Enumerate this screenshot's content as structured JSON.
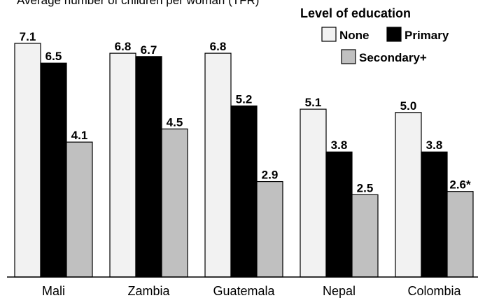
{
  "chart_data": {
    "type": "bar",
    "title": "Average number of children per woman (TFR)",
    "legend_title": "Level of education",
    "legend_position": "top-right",
    "categories": [
      "Mali",
      "Zambia",
      "Guatemala",
      "Nepal",
      "Colombia"
    ],
    "series": [
      {
        "name": "None",
        "color": "#f2f2f2",
        "values": [
          7.1,
          6.8,
          6.8,
          5.1,
          5.0
        ],
        "labels": [
          "7.1",
          "6.8",
          "6.8",
          "5.1",
          "5.0"
        ]
      },
      {
        "name": "Primary",
        "color": "#000000",
        "values": [
          6.5,
          6.7,
          5.2,
          3.8,
          3.8
        ],
        "labels": [
          "6.5",
          "6.7",
          "5.2",
          "3.8",
          "3.8"
        ]
      },
      {
        "name": "Secondary+",
        "color": "#c0c0c0",
        "values": [
          4.1,
          4.5,
          2.9,
          2.5,
          2.6
        ],
        "labels": [
          "4.1",
          "4.5",
          "2.9",
          "2.5",
          "2.6*"
        ]
      }
    ],
    "ylim": [
      0,
      7.4
    ],
    "grid": false
  }
}
